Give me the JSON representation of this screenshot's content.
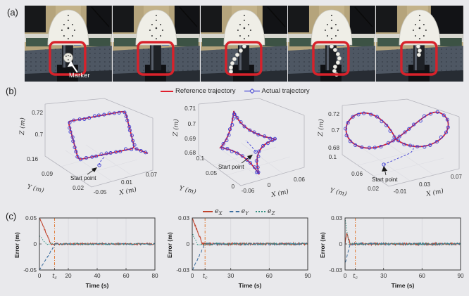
{
  "figure": {
    "labels": {
      "a": "(a)",
      "b": "(b)",
      "c": "(c)"
    },
    "colors": {
      "background": "#e9e9ec",
      "reference": "#e01f2d",
      "actual": "#3f3fd4",
      "ex": "#c0432c",
      "ey": "#3d6e9e",
      "ez": "#2f8f7e",
      "tc_line": "#e07b39",
      "photo_box": "#d7222b"
    }
  },
  "panel_a": {
    "marker_label": "Marker",
    "photo_count": 5
  },
  "panel_b": {
    "legend": [
      {
        "label": "Reference trajectory",
        "style": "solid-red-line"
      },
      {
        "label": "Actual trajectory",
        "style": "dashed-blue-diamond"
      }
    ]
  },
  "panel_c": {
    "legend": [
      {
        "base": "e",
        "sub": "X"
      },
      {
        "base": "e",
        "sub": "Y"
      },
      {
        "base": "e",
        "sub": "Z"
      }
    ],
    "tc_label": {
      "base": "t",
      "sub": "c"
    }
  },
  "chart_data": [
    {
      "type": "line3d",
      "shape": "square",
      "zlabel": "Z (m)",
      "ylabel": "Y (m)",
      "xlabel": "X (m)",
      "zticks": [
        "0.72",
        "0.7"
      ],
      "yticks": [
        "0.16",
        "0.09",
        "0.02"
      ],
      "xticks": [
        "-0.05",
        "0.01",
        "0.07"
      ],
      "x_range": [
        -0.05,
        0.07
      ],
      "y_range": [
        0.02,
        0.16
      ],
      "z_range": [
        0.69,
        0.72
      ],
      "annotation": "Start point",
      "marker_count": 40,
      "series": [
        "Reference trajectory",
        "Actual trajectory"
      ]
    },
    {
      "type": "line3d",
      "shape": "four-pointed-star",
      "zlabel": "Z (m)",
      "ylabel": "Y (m)",
      "xlabel": "X (m)",
      "zticks": [
        "0.71",
        "0.7",
        "0.69",
        "0.68"
      ],
      "yticks": [
        "0.1",
        "0.05",
        "0"
      ],
      "xticks": [
        "-0.06",
        "0",
        "0.06"
      ],
      "x_range": [
        -0.06,
        0.06
      ],
      "y_range": [
        0,
        0.1
      ],
      "z_range": [
        0.68,
        0.71
      ],
      "annotation": "Start point",
      "marker_count": 34,
      "series": [
        "Reference trajectory",
        "Actual trajectory"
      ]
    },
    {
      "type": "line3d",
      "shape": "figure-eight",
      "zlabel": "Z (m)",
      "ylabel": "Y (m)",
      "xlabel": "X (m)",
      "zticks": [
        "0.72",
        "0.7",
        "0.68"
      ],
      "yticks": [
        "0.1",
        "0.06",
        "0.02"
      ],
      "xticks": [
        "-0.01",
        "0.03",
        "0.07"
      ],
      "x_range": [
        -0.01,
        0.07
      ],
      "y_range": [
        0.02,
        0.1
      ],
      "z_range": [
        0.68,
        0.72
      ],
      "annotation": "Start point",
      "marker_count": 40,
      "series": [
        "Reference trajectory",
        "Actual trajectory"
      ]
    },
    {
      "type": "line",
      "xlabel": "Time (s)",
      "ylabel": "Error (m)",
      "xlim": [
        0,
        80
      ],
      "ylim": [
        -0.05,
        0.05
      ],
      "yticks": [
        "0.05",
        "0",
        "-0.05"
      ],
      "xticks": [
        {
          "t": 0,
          "label": "0"
        },
        {
          "t": 10.5,
          "label": "tc"
        },
        {
          "t": 20,
          "label": "20"
        },
        {
          "t": 40,
          "label": "40"
        },
        {
          "t": 60,
          "label": "60"
        },
        {
          "t": 80,
          "label": "80"
        }
      ],
      "tc": 10.5,
      "series": [
        {
          "name": "e_X",
          "style": "solid",
          "y0": 0.05,
          "t_settle": 8,
          "noise": 0.0016
        },
        {
          "name": "e_Y",
          "style": "dash",
          "y0": -0.05,
          "t_settle": 11,
          "noise": 0.0014
        },
        {
          "name": "e_Z",
          "style": "dot",
          "y0": 0.016,
          "t_settle": 5,
          "noise": 0.0014
        }
      ]
    },
    {
      "type": "line",
      "xlabel": "Time (s)",
      "ylabel": "Error (m)",
      "xlim": [
        0,
        90
      ],
      "ylim": [
        -0.03,
        0.03
      ],
      "yticks": [
        "0.03",
        "0",
        "-0.03"
      ],
      "xticks": [
        {
          "t": 0,
          "label": "0"
        },
        {
          "t": 10,
          "label": "tc"
        },
        {
          "t": 30,
          "label": "30"
        },
        {
          "t": 60,
          "label": "60"
        },
        {
          "t": 90,
          "label": "90"
        }
      ],
      "tc": 10,
      "series": [
        {
          "name": "e_X",
          "style": "solid",
          "y0": 0.03,
          "t_settle": 8,
          "noise": 0.0012
        },
        {
          "name": "e_Y",
          "style": "dash",
          "y0": -0.03,
          "t_settle": 10,
          "noise": 0.0011
        },
        {
          "name": "e_Z",
          "style": "dot",
          "y0": 0.012,
          "t_settle": 4,
          "noise": 0.0011
        }
      ]
    },
    {
      "type": "line",
      "xlabel": "Time (s)",
      "ylabel": "Error (m)",
      "xlim": [
        0,
        90
      ],
      "ylim": [
        -0.03,
        0.03
      ],
      "yticks": [
        "0.03",
        "0",
        "-0.03"
      ],
      "xticks": [
        {
          "t": 0,
          "label": "0"
        },
        {
          "t": 8,
          "label": "tc"
        },
        {
          "t": 30,
          "label": "30"
        },
        {
          "t": 60,
          "label": "60"
        },
        {
          "t": 90,
          "label": "90"
        }
      ],
      "tc": 8,
      "series": [
        {
          "name": "e_X",
          "style": "solid",
          "peak": 0.013,
          "t_peak": 1.2,
          "t_settle": 4,
          "noise": 0.0012
        },
        {
          "name": "e_Y",
          "style": "dash",
          "y0": -0.022,
          "t_settle": 4,
          "noise": 0.0011
        },
        {
          "name": "e_Z",
          "style": "dot",
          "y0": 0.03,
          "t_settle": 3,
          "noise": 0.0011
        }
      ]
    }
  ]
}
